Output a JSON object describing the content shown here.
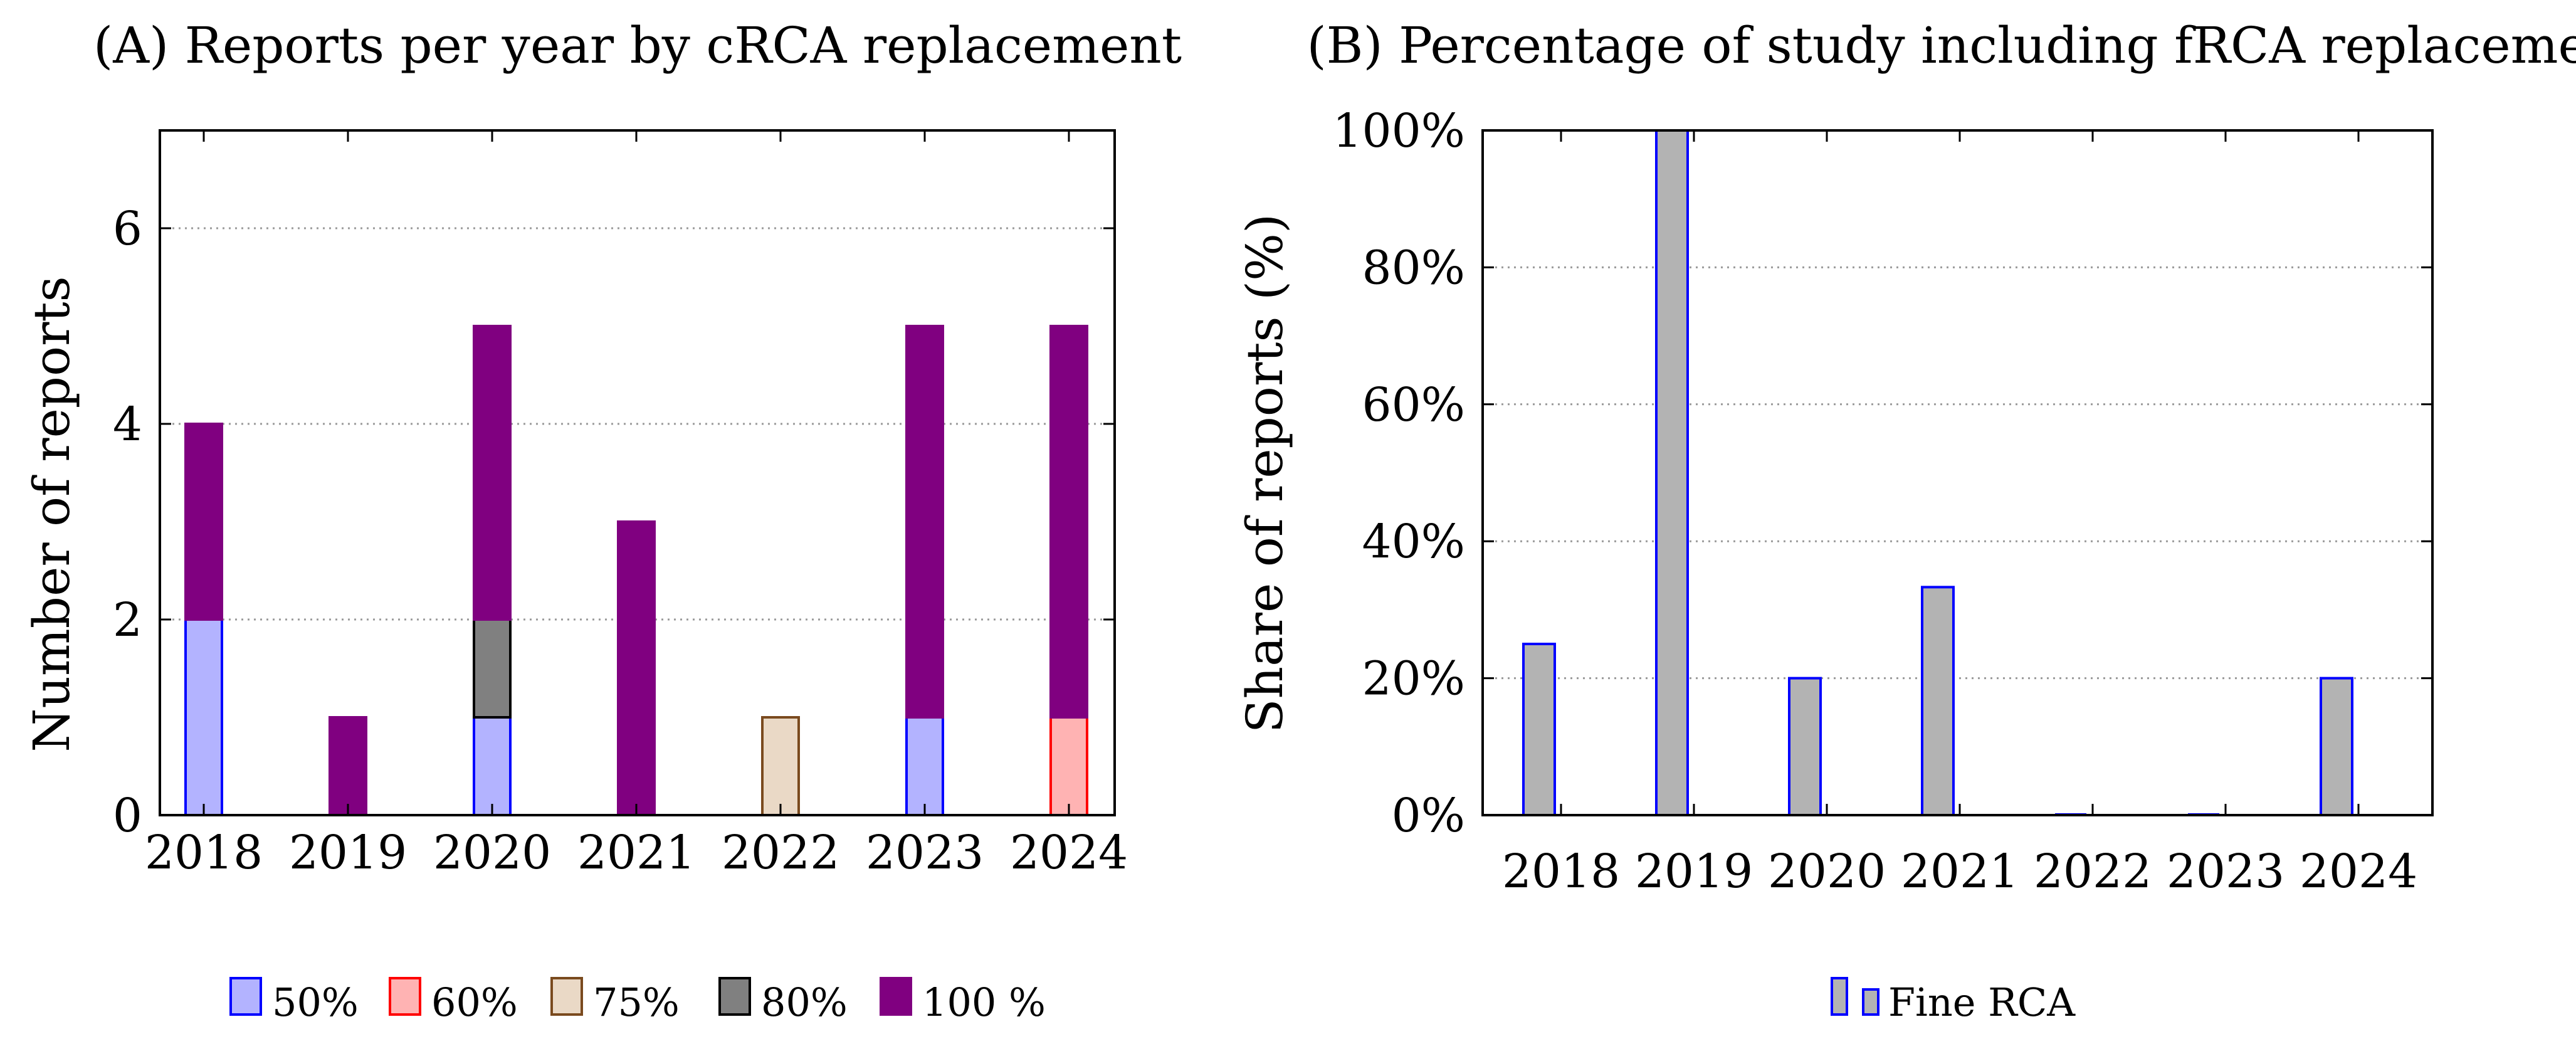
{
  "chart_data": [
    {
      "type": "bar",
      "stacked": true,
      "title": "(A) Reports per year by cRCA replacement",
      "xlabel": "",
      "ylabel": "Number of reports",
      "ylim": [
        0,
        7
      ],
      "yticks": [
        0,
        2,
        4,
        6
      ],
      "categories": [
        "2018",
        "2019",
        "2020",
        "2021",
        "2022",
        "2023",
        "2024"
      ],
      "series": [
        {
          "name": "50%",
          "values": [
            2,
            0,
            1,
            0,
            0,
            1,
            0
          ],
          "fill": "#b3b3ff",
          "stroke": "#0000ff"
        },
        {
          "name": "60%",
          "values": [
            0,
            0,
            0,
            0,
            0,
            0,
            1
          ],
          "fill": "#ffb3b3",
          "stroke": "#ff0000"
        },
        {
          "name": "75%",
          "values": [
            0,
            0,
            0,
            0,
            1,
            0,
            0
          ],
          "fill": "#ead9c6",
          "stroke": "#7a4a1e"
        },
        {
          "name": "80%",
          "values": [
            0,
            0,
            1,
            0,
            0,
            0,
            0
          ],
          "fill": "#808080",
          "stroke": "#000000"
        },
        {
          "name": "100 %",
          "values": [
            2,
            1,
            3,
            3,
            0,
            4,
            4
          ],
          "fill": "#800080",
          "stroke": "#800080"
        }
      ],
      "grid": true,
      "legend": "bottom"
    },
    {
      "type": "bar",
      "title": "(B) Percentage of study including fRCA replacement",
      "xlabel": "",
      "ylabel": "Share of reports (%)",
      "ylim": [
        0,
        100
      ],
      "yticks": [
        "0%",
        "20%",
        "40%",
        "60%",
        "80%",
        "100%"
      ],
      "categories": [
        "2018",
        "2019",
        "2020",
        "2021",
        "2022",
        "2023",
        "2024"
      ],
      "series": [
        {
          "name": "Fine RCA",
          "values": [
            25,
            100,
            20,
            33.3,
            0,
            0,
            20
          ],
          "fill": "#b3b3b3",
          "stroke": "#0000ff"
        }
      ],
      "grid": true,
      "legend": "bottom"
    }
  ]
}
